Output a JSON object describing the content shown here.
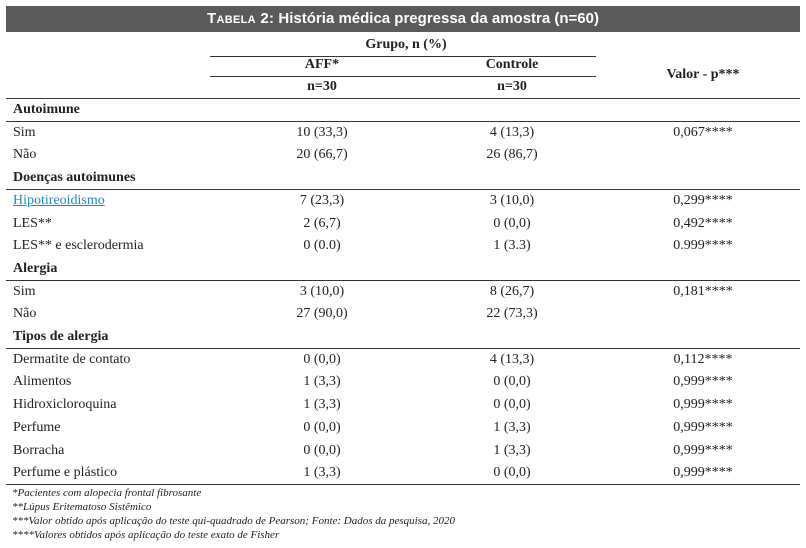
{
  "table": {
    "title_prefix": "Tabela 2:",
    "title_rest": " História médica pregressa da amostra (n=60)",
    "group_header": "Grupo, n (%)",
    "col_aff": "AFF*",
    "col_aff_n": "n=30",
    "col_ctrl": "Controle",
    "col_ctrl_n": "n=30",
    "col_val": "Valor - p***",
    "rows": [
      {
        "label": "Autoimune",
        "section": true
      },
      {
        "label": "Sim",
        "aff": "10 (33,3)",
        "ctrl": "4 (13,3)",
        "val": "0,067****"
      },
      {
        "label": "Não",
        "aff": "20 (66,7)",
        "ctrl": "26 (86,7)",
        "val": ""
      },
      {
        "label": "Doenças autoimunes",
        "section": true
      },
      {
        "label": "Hipotireoidismo",
        "aff": "7 (23,3)",
        "ctrl": "3 (10,0)",
        "val": "0,299****",
        "link": true
      },
      {
        "label": "LES**",
        "aff": "2 (6,7)",
        "ctrl": "0 (0,0)",
        "val": "0,492****"
      },
      {
        "label": "LES** e esclerodermia",
        "aff": "0 (0.0)",
        "ctrl": "1 (3.3)",
        "val": "0.999****"
      },
      {
        "label": "Alergia",
        "section": true
      },
      {
        "label": "Sim",
        "aff": "3 (10,0)",
        "ctrl": "8 (26,7)",
        "val": "0,181****"
      },
      {
        "label": "Não",
        "aff": "27 (90,0)",
        "ctrl": "22 (73,3)",
        "val": ""
      },
      {
        "label": "Tipos de alergia",
        "section": true
      },
      {
        "label": "Dermatite de contato",
        "aff": "0 (0,0)",
        "ctrl": "4 (13,3)",
        "val": "0,112****"
      },
      {
        "label": "Alimentos",
        "aff": "1 (3,3)",
        "ctrl": "0 (0,0)",
        "val": "0,999****"
      },
      {
        "label": "Hidroxicloroquina",
        "aff": "1 (3,3)",
        "ctrl": "0 (0,0)",
        "val": "0,999****"
      },
      {
        "label": "Perfume",
        "aff": "0 (0,0)",
        "ctrl": "1 (3,3)",
        "val": "0,999****"
      },
      {
        "label": "Borracha",
        "aff": "0 (0,0)",
        "ctrl": "1 (3,3)",
        "val": "0,999****"
      },
      {
        "label": "Perfume e plástico",
        "aff": "1 (3,3)",
        "ctrl": "0 (0,0)",
        "val": "0,999****"
      }
    ],
    "footnotes": [
      "*Pacientes com alopecia frontal fibrosante",
      "**Lúpus Eritematoso Sistêmico",
      "***Valor obtido após aplicação do teste qui-quadrado de Pearson; Fonte: Dados da pesquisa, 2020",
      "****Valores obtidos após aplicação do teste exato de Fisher"
    ]
  }
}
